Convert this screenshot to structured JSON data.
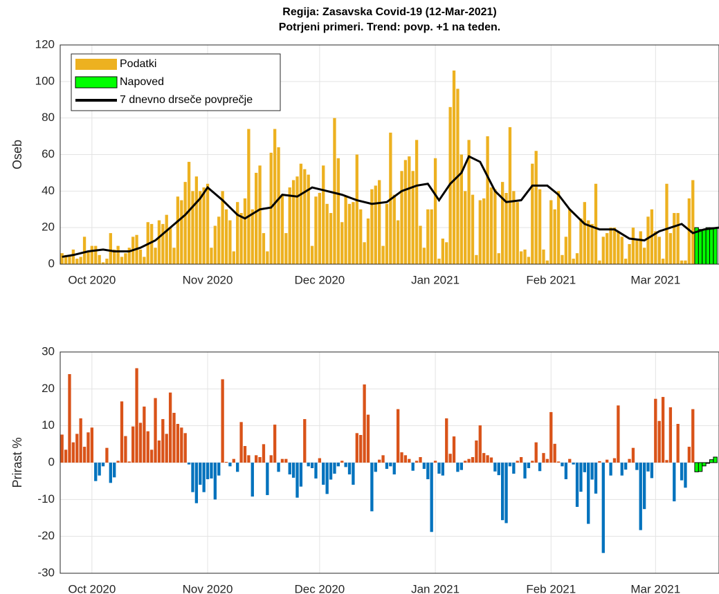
{
  "chart_data": [
    {
      "type": "bar",
      "title": "Regija: Zasavska Covid-19 (12-Mar-2021)",
      "subtitle": "Potrjeni primeri. Trend: povp. +1 na teden.",
      "ylabel": "Oseb",
      "xlim": [
        0.5,
        177
      ],
      "xticks": [
        {
          "value": 9,
          "label": "Oct 2020"
        },
        {
          "value": 40,
          "label": "Nov 2020"
        },
        {
          "value": 70,
          "label": "Dec 2020"
        },
        {
          "value": 101,
          "label": "Jan 2021"
        },
        {
          "value": 132,
          "label": "Feb 2021"
        },
        {
          "value": 160,
          "label": "Mar 2021"
        }
      ],
      "ylim": [
        0,
        120
      ],
      "yticks": [
        0,
        20,
        40,
        60,
        80,
        100,
        120
      ],
      "grid": true,
      "legend": "upper left",
      "series": [
        {
          "name": "Podatki",
          "color": "#EDB120",
          "x": [
            1,
            2,
            3,
            4,
            5,
            6,
            7,
            8,
            9,
            10,
            11,
            12,
            13,
            14,
            15,
            16,
            17,
            18,
            19,
            20,
            21,
            22,
            23,
            24,
            25,
            26,
            27,
            28,
            29,
            30,
            31,
            32,
            33,
            34,
            35,
            36,
            37,
            38,
            39,
            40,
            41,
            42,
            43,
            44,
            45,
            46,
            47,
            48,
            49,
            50,
            51,
            52,
            53,
            54,
            55,
            56,
            57,
            58,
            59,
            60,
            61,
            62,
            63,
            64,
            65,
            66,
            67,
            68,
            69,
            70,
            71,
            72,
            73,
            74,
            75,
            76,
            77,
            78,
            79,
            80,
            81,
            82,
            83,
            84,
            85,
            86,
            87,
            88,
            89,
            90,
            91,
            92,
            93,
            94,
            95,
            96,
            97,
            98,
            99,
            100,
            101,
            102,
            103,
            104,
            105,
            106,
            107,
            108,
            109,
            110,
            111,
            112,
            113,
            114,
            115,
            116,
            117,
            118,
            119,
            120,
            121,
            122,
            123,
            124,
            125,
            126,
            127,
            128,
            129,
            130,
            131,
            132,
            133,
            134,
            135,
            136,
            137,
            138,
            139,
            140,
            141,
            142,
            143,
            144,
            145,
            146,
            147,
            148,
            149,
            150,
            151,
            152,
            153,
            154,
            155,
            156,
            157,
            158,
            159,
            160,
            161,
            162,
            163,
            164,
            165,
            166,
            167,
            168,
            169,
            170
          ],
          "values": [
            6,
            5,
            5,
            8,
            3,
            4,
            15,
            7,
            10,
            10,
            5,
            1,
            3,
            17,
            8,
            10,
            4,
            6,
            9,
            15,
            16,
            8,
            4,
            23,
            22,
            9,
            24,
            22,
            27,
            20,
            9,
            37,
            35,
            45,
            56,
            40,
            48,
            40,
            42,
            44,
            9,
            21,
            26,
            40,
            30,
            24,
            7,
            34,
            28,
            36,
            74,
            30,
            50,
            54,
            17,
            7,
            61,
            74,
            64,
            38,
            17,
            42,
            46,
            48,
            55,
            52,
            49,
            10,
            37,
            39,
            54,
            33,
            28,
            80,
            58,
            23,
            37,
            33,
            34,
            60,
            30,
            12,
            25,
            41,
            43,
            46,
            10,
            33,
            72,
            38,
            24,
            51,
            57,
            59,
            51,
            68,
            21,
            9,
            30,
            30,
            58,
            3,
            14,
            12,
            86,
            106,
            96,
            60,
            40,
            68,
            38,
            5,
            35,
            36,
            70,
            42,
            41,
            6,
            45,
            39,
            75,
            40,
            34,
            7,
            8,
            4,
            55,
            62,
            41,
            8,
            2,
            35,
            30,
            40,
            5,
            15,
            30,
            3,
            6,
            25,
            34,
            24,
            22,
            44,
            2,
            15,
            17,
            20,
            20,
            18,
            15,
            3,
            11,
            20,
            13,
            18,
            9,
            26,
            30,
            18,
            15,
            3,
            44,
            17,
            28,
            28,
            2,
            2,
            36,
            46
          ]
        },
        {
          "name": "Napoved",
          "color": "#00FF00",
          "edgecolor": "#000000",
          "x": [
            171,
            172,
            173,
            174,
            175,
            176
          ],
          "values": [
            20,
            19,
            19,
            20,
            20,
            20
          ]
        },
        {
          "name": "7 dnevno drseče povprečje",
          "type": "line",
          "color": "#000000",
          "x": [
            1,
            4,
            8,
            12,
            15,
            19,
            22,
            26,
            30,
            34,
            38,
            40,
            44,
            48,
            50,
            54,
            57,
            60,
            64,
            68,
            72,
            76,
            80,
            84,
            88,
            92,
            96,
            99,
            102,
            105,
            108,
            110,
            113,
            117,
            120,
            124,
            127,
            131,
            134,
            137,
            141,
            145,
            149,
            153,
            157,
            161,
            164,
            167,
            170,
            173,
            177
          ],
          "values": [
            4,
            5,
            7,
            8,
            7,
            7,
            9,
            13,
            20,
            27,
            36,
            42,
            35,
            27,
            25,
            30,
            31,
            38,
            37,
            42,
            40,
            38,
            35,
            33,
            34,
            40,
            43,
            44,
            35,
            44,
            50,
            59,
            56,
            40,
            34,
            35,
            43,
            43,
            38,
            30,
            22,
            19,
            19,
            14,
            13,
            18,
            20,
            22,
            17,
            19,
            20
          ]
        }
      ]
    },
    {
      "type": "bar",
      "ylabel": "Prirast %",
      "xlim": [
        0.5,
        177
      ],
      "xticks": [
        {
          "value": 9,
          "label": "Oct 2020"
        },
        {
          "value": 40,
          "label": "Nov 2020"
        },
        {
          "value": 70,
          "label": "Dec 2020"
        },
        {
          "value": 101,
          "label": "Jan 2021"
        },
        {
          "value": 132,
          "label": "Feb 2021"
        },
        {
          "value": 160,
          "label": "Mar 2021"
        }
      ],
      "ylim": [
        -30,
        30
      ],
      "yticks": [
        -30,
        -20,
        -10,
        0,
        10,
        20,
        30
      ],
      "grid": true,
      "series": [
        {
          "positive_color": "#D95319",
          "negative_color": "#0072BD",
          "x": [
            1,
            2,
            3,
            4,
            5,
            6,
            7,
            8,
            9,
            10,
            11,
            12,
            13,
            14,
            15,
            16,
            17,
            18,
            19,
            20,
            21,
            22,
            23,
            24,
            25,
            26,
            27,
            28,
            29,
            30,
            31,
            32,
            33,
            34,
            35,
            36,
            37,
            38,
            39,
            40,
            41,
            42,
            43,
            44,
            45,
            46,
            47,
            48,
            49,
            50,
            51,
            52,
            53,
            54,
            55,
            56,
            57,
            58,
            59,
            60,
            61,
            62,
            63,
            64,
            65,
            66,
            67,
            68,
            69,
            70,
            71,
            72,
            73,
            74,
            75,
            76,
            77,
            78,
            79,
            80,
            81,
            82,
            83,
            84,
            85,
            86,
            87,
            88,
            89,
            90,
            91,
            92,
            93,
            94,
            95,
            96,
            97,
            98,
            99,
            100,
            101,
            102,
            103,
            104,
            105,
            106,
            107,
            108,
            109,
            110,
            111,
            112,
            113,
            114,
            115,
            116,
            117,
            118,
            119,
            120,
            121,
            122,
            123,
            124,
            125,
            126,
            127,
            128,
            129,
            130,
            131,
            132,
            133,
            134,
            135,
            136,
            137,
            138,
            139,
            140,
            141,
            142,
            143,
            144,
            145,
            146,
            147,
            148,
            149,
            150,
            151,
            152,
            153,
            154,
            155,
            156,
            157,
            158,
            159,
            160,
            161,
            162,
            163,
            164,
            165,
            166,
            167,
            168,
            169,
            170
          ],
          "values": [
            7.6,
            3.5,
            24,
            5.5,
            7.8,
            12,
            4.3,
            8.2,
            9.5,
            -5,
            -3.5,
            -1,
            4,
            -5.5,
            -4,
            0.5,
            16.6,
            7.2,
            0.3,
            9.8,
            25.6,
            10.8,
            15.2,
            8.5,
            3.5,
            17.5,
            6,
            11.8,
            7.8,
            19,
            13.5,
            10.5,
            9.5,
            8,
            -0.5,
            -8,
            -11,
            -6,
            -8,
            -4.5,
            -4.3,
            -10,
            -3.5,
            22.6,
            0.2,
            -1,
            1,
            -2.5,
            11,
            4.5,
            2,
            -9.2,
            2,
            1.5,
            5,
            -8.8,
            2,
            10.3,
            -2.5,
            1,
            1,
            -3.2,
            -4.1,
            -9.5,
            -6.5,
            11.8,
            -1,
            -1.5,
            -4.3,
            1.2,
            -6,
            -8.5,
            -4.6,
            -3,
            -1,
            0.5,
            -1.2,
            -3.2,
            -6,
            8,
            7.5,
            21.2,
            13,
            -13.2,
            -2.5,
            0.8,
            2,
            -1.7,
            -1,
            -3.2,
            14.5,
            2.8,
            2,
            1,
            -2.2,
            0.5,
            1.5,
            -1.7,
            -4.5,
            -18.8,
            0.5,
            -3,
            -3.5,
            12,
            2.4,
            7.1,
            -2.5,
            -2,
            0.5,
            1,
            1.5,
            6,
            10.1,
            2.6,
            2,
            1.4,
            -2.4,
            -3.4,
            -15.6,
            -16.4,
            -1,
            -3,
            0.5,
            1.5,
            -4.3,
            -1.5,
            0.5,
            5.5,
            -2.3,
            2.6,
            1,
            13.7,
            5.1,
            0.3,
            -1,
            -4.5,
            1,
            -0.5,
            -12,
            -7.9,
            -2.6,
            -16.6,
            -4.6,
            -8.4,
            0.4,
            -24.5,
            0.8,
            -3.5,
            1.2,
            15.5,
            -3.5,
            -1.9,
            1,
            4,
            -2,
            -18.3,
            -12.6,
            -2.4,
            -4.2,
            17.3,
            11.3,
            17.8,
            0.7,
            15,
            -10.5,
            10.5,
            -4.8,
            -6.8,
            4.3,
            14.5
          ]
        },
        {
          "color": "#00FF00",
          "edgecolor": "#000000",
          "x": [
            171,
            172,
            173,
            174,
            175,
            176
          ],
          "values": [
            -2.5,
            -2.4,
            -0.9,
            -0.2,
            0.8,
            1.5
          ]
        }
      ]
    }
  ]
}
